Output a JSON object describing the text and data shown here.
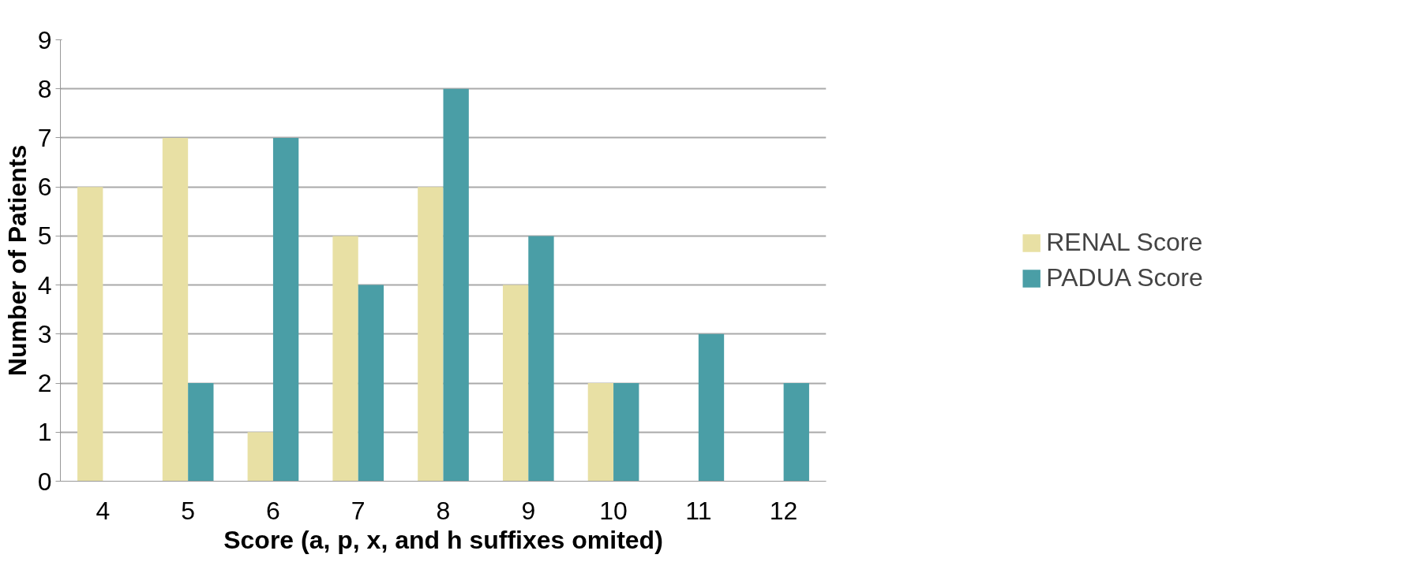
{
  "chart_data": {
    "type": "bar",
    "xlabel": "Score (a, p, x, and h suffixes omited)",
    "ylabel": "Number of Patients",
    "categories": [
      "4",
      "5",
      "6",
      "7",
      "8",
      "9",
      "10",
      "11",
      "12"
    ],
    "series": [
      {
        "name": "RENAL Score",
        "color": "#e8e0a4",
        "values": [
          6,
          7,
          1,
          5,
          6,
          4,
          2,
          0,
          0
        ]
      },
      {
        "name": "PADUA Score",
        "color": "#4a9ea6",
        "values": [
          0,
          2,
          7,
          4,
          8,
          5,
          2,
          3,
          2
        ]
      }
    ],
    "ylim": [
      0,
      9
    ],
    "yticks": [
      0,
      1,
      2,
      3,
      4,
      5,
      6,
      7,
      8,
      9
    ],
    "grid": "y",
    "legend": "right"
  }
}
